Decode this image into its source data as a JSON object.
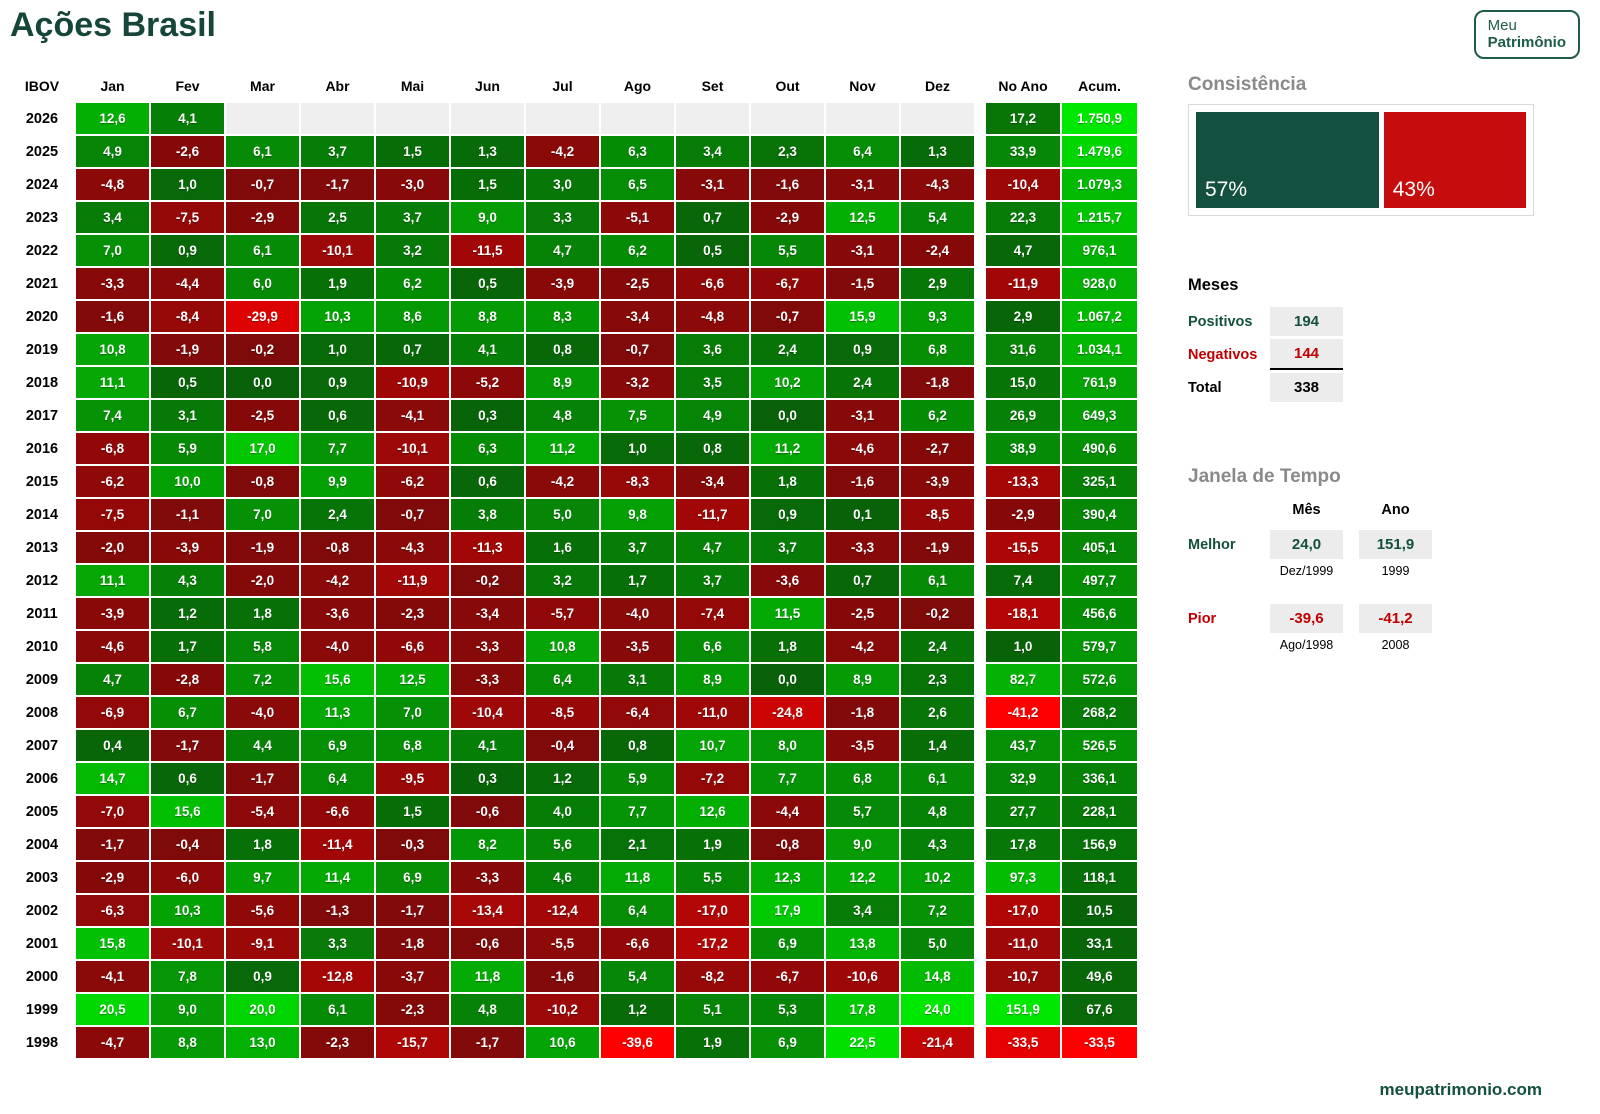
{
  "header": {
    "title": "Ações Brasil",
    "logo_line1": "Meu",
    "logo_line2": "Patrimônio"
  },
  "footer": {
    "site": "meupatrimonio.com"
  },
  "colors": {
    "brand_green": "#16453a",
    "consist_green": "#14503f",
    "consist_red": "#c50d0d",
    "heading_gray": "#8a8a8a",
    "empty_cell": "#efefef"
  },
  "consistencia": {
    "heading": "Consistência",
    "positive_pct": "57%",
    "negative_pct": "43%",
    "positive_share": 57,
    "negative_share": 43
  },
  "meses": {
    "heading": "Meses",
    "rows": [
      {
        "label": "Positivos",
        "value": "194",
        "tone": "green"
      },
      {
        "label": "Negativos",
        "value": "144",
        "tone": "red"
      },
      {
        "label": "Total",
        "value": "338",
        "tone": "black"
      }
    ]
  },
  "janela": {
    "heading": "Janela de Tempo",
    "col_headers": [
      "Mês",
      "Ano"
    ],
    "rows": [
      {
        "label": "Melhor",
        "tone": "green",
        "mes": "24,0",
        "mes_sub": "Dez/1999",
        "ano": "151,9",
        "ano_sub": "1999"
      },
      {
        "label": "Pior",
        "tone": "red",
        "mes": "-39,6",
        "mes_sub": "Ago/1998",
        "ano": "-41,2",
        "ano_sub": "2008"
      }
    ]
  },
  "chart_data": {
    "type": "heatmap",
    "title": "Ações Brasil",
    "index_label": "IBOV",
    "columns": [
      "Jan",
      "Fev",
      "Mar",
      "Abr",
      "Mai",
      "Jun",
      "Jul",
      "Ago",
      "Set",
      "Out",
      "Nov",
      "Dez"
    ],
    "summary_columns": [
      "No Ano",
      "Acum."
    ],
    "rows": [
      {
        "year": "2026",
        "values": [
          "12,6",
          "4,1",
          null,
          null,
          null,
          null,
          null,
          null,
          null,
          null,
          null,
          null
        ],
        "no_ano": "17,2",
        "acum": "1.750,9"
      },
      {
        "year": "2025",
        "values": [
          "4,9",
          "-2,6",
          "6,1",
          "3,7",
          "1,5",
          "1,3",
          "-4,2",
          "6,3",
          "3,4",
          "2,3",
          "6,4",
          "1,3"
        ],
        "no_ano": "33,9",
        "acum": "1.479,6"
      },
      {
        "year": "2024",
        "values": [
          "-4,8",
          "1,0",
          "-0,7",
          "-1,7",
          "-3,0",
          "1,5",
          "3,0",
          "6,5",
          "-3,1",
          "-1,6",
          "-3,1",
          "-4,3"
        ],
        "no_ano": "-10,4",
        "acum": "1.079,3"
      },
      {
        "year": "2023",
        "values": [
          "3,4",
          "-7,5",
          "-2,9",
          "2,5",
          "3,7",
          "9,0",
          "3,3",
          "-5,1",
          "0,7",
          "-2,9",
          "12,5",
          "5,4"
        ],
        "no_ano": "22,3",
        "acum": "1.215,7"
      },
      {
        "year": "2022",
        "values": [
          "7,0",
          "0,9",
          "6,1",
          "-10,1",
          "3,2",
          "-11,5",
          "4,7",
          "6,2",
          "0,5",
          "5,5",
          "-3,1",
          "-2,4"
        ],
        "no_ano": "4,7",
        "acum": "976,1"
      },
      {
        "year": "2021",
        "values": [
          "-3,3",
          "-4,4",
          "6,0",
          "1,9",
          "6,2",
          "0,5",
          "-3,9",
          "-2,5",
          "-6,6",
          "-6,7",
          "-1,5",
          "2,9"
        ],
        "no_ano": "-11,9",
        "acum": "928,0"
      },
      {
        "year": "2020",
        "values": [
          "-1,6",
          "-8,4",
          "-29,9",
          "10,3",
          "8,6",
          "8,8",
          "8,3",
          "-3,4",
          "-4,8",
          "-0,7",
          "15,9",
          "9,3"
        ],
        "no_ano": "2,9",
        "acum": "1.067,2"
      },
      {
        "year": "2019",
        "values": [
          "10,8",
          "-1,9",
          "-0,2",
          "1,0",
          "0,7",
          "4,1",
          "0,8",
          "-0,7",
          "3,6",
          "2,4",
          "0,9",
          "6,8"
        ],
        "no_ano": "31,6",
        "acum": "1.034,1"
      },
      {
        "year": "2018",
        "values": [
          "11,1",
          "0,5",
          "0,0",
          "0,9",
          "-10,9",
          "-5,2",
          "8,9",
          "-3,2",
          "3,5",
          "10,2",
          "2,4",
          "-1,8"
        ],
        "no_ano": "15,0",
        "acum": "761,9"
      },
      {
        "year": "2017",
        "values": [
          "7,4",
          "3,1",
          "-2,5",
          "0,6",
          "-4,1",
          "0,3",
          "4,8",
          "7,5",
          "4,9",
          "0,0",
          "-3,1",
          "6,2"
        ],
        "no_ano": "26,9",
        "acum": "649,3"
      },
      {
        "year": "2016",
        "values": [
          "-6,8",
          "5,9",
          "17,0",
          "7,7",
          "-10,1",
          "6,3",
          "11,2",
          "1,0",
          "0,8",
          "11,2",
          "-4,6",
          "-2,7"
        ],
        "no_ano": "38,9",
        "acum": "490,6"
      },
      {
        "year": "2015",
        "values": [
          "-6,2",
          "10,0",
          "-0,8",
          "9,9",
          "-6,2",
          "0,6",
          "-4,2",
          "-8,3",
          "-3,4",
          "1,8",
          "-1,6",
          "-3,9"
        ],
        "no_ano": "-13,3",
        "acum": "325,1"
      },
      {
        "year": "2014",
        "values": [
          "-7,5",
          "-1,1",
          "7,0",
          "2,4",
          "-0,7",
          "3,8",
          "5,0",
          "9,8",
          "-11,7",
          "0,9",
          "0,1",
          "-8,5"
        ],
        "no_ano": "-2,9",
        "acum": "390,4"
      },
      {
        "year": "2013",
        "values": [
          "-2,0",
          "-3,9",
          "-1,9",
          "-0,8",
          "-4,3",
          "-11,3",
          "1,6",
          "3,7",
          "4,7",
          "3,7",
          "-3,3",
          "-1,9"
        ],
        "no_ano": "-15,5",
        "acum": "405,1"
      },
      {
        "year": "2012",
        "values": [
          "11,1",
          "4,3",
          "-2,0",
          "-4,2",
          "-11,9",
          "-0,2",
          "3,2",
          "1,7",
          "3,7",
          "-3,6",
          "0,7",
          "6,1"
        ],
        "no_ano": "7,4",
        "acum": "497,7"
      },
      {
        "year": "2011",
        "values": [
          "-3,9",
          "1,2",
          "1,8",
          "-3,6",
          "-2,3",
          "-3,4",
          "-5,7",
          "-4,0",
          "-7,4",
          "11,5",
          "-2,5",
          "-0,2"
        ],
        "no_ano": "-18,1",
        "acum": "456,6"
      },
      {
        "year": "2010",
        "values": [
          "-4,6",
          "1,7",
          "5,8",
          "-4,0",
          "-6,6",
          "-3,3",
          "10,8",
          "-3,5",
          "6,6",
          "1,8",
          "-4,2",
          "2,4"
        ],
        "no_ano": "1,0",
        "acum": "579,7"
      },
      {
        "year": "2009",
        "values": [
          "4,7",
          "-2,8",
          "7,2",
          "15,6",
          "12,5",
          "-3,3",
          "6,4",
          "3,1",
          "8,9",
          "0,0",
          "8,9",
          "2,3"
        ],
        "no_ano": "82,7",
        "acum": "572,6"
      },
      {
        "year": "2008",
        "values": [
          "-6,9",
          "6,7",
          "-4,0",
          "11,3",
          "7,0",
          "-10,4",
          "-8,5",
          "-6,4",
          "-11,0",
          "-24,8",
          "-1,8",
          "2,6"
        ],
        "no_ano": "-41,2",
        "acum": "268,2"
      },
      {
        "year": "2007",
        "values": [
          "0,4",
          "-1,7",
          "4,4",
          "6,9",
          "6,8",
          "4,1",
          "-0,4",
          "0,8",
          "10,7",
          "8,0",
          "-3,5",
          "1,4"
        ],
        "no_ano": "43,7",
        "acum": "526,5"
      },
      {
        "year": "2006",
        "values": [
          "14,7",
          "0,6",
          "-1,7",
          "6,4",
          "-9,5",
          "0,3",
          "1,2",
          "5,9",
          "-7,2",
          "7,7",
          "6,8",
          "6,1"
        ],
        "no_ano": "32,9",
        "acum": "336,1"
      },
      {
        "year": "2005",
        "values": [
          "-7,0",
          "15,6",
          "-5,4",
          "-6,6",
          "1,5",
          "-0,6",
          "4,0",
          "7,7",
          "12,6",
          "-4,4",
          "5,7",
          "4,8"
        ],
        "no_ano": "27,7",
        "acum": "228,1"
      },
      {
        "year": "2004",
        "values": [
          "-1,7",
          "-0,4",
          "1,8",
          "-11,4",
          "-0,3",
          "8,2",
          "5,6",
          "2,1",
          "1,9",
          "-0,8",
          "9,0",
          "4,3"
        ],
        "no_ano": "17,8",
        "acum": "156,9"
      },
      {
        "year": "2003",
        "values": [
          "-2,9",
          "-6,0",
          "9,7",
          "11,4",
          "6,9",
          "-3,3",
          "4,6",
          "11,8",
          "5,5",
          "12,3",
          "12,2",
          "10,2"
        ],
        "no_ano": "97,3",
        "acum": "118,1"
      },
      {
        "year": "2002",
        "values": [
          "-6,3",
          "10,3",
          "-5,6",
          "-1,3",
          "-1,7",
          "-13,4",
          "-12,4",
          "6,4",
          "-17,0",
          "17,9",
          "3,4",
          "7,2"
        ],
        "no_ano": "-17,0",
        "acum": "10,5"
      },
      {
        "year": "2001",
        "values": [
          "15,8",
          "-10,1",
          "-9,1",
          "3,3",
          "-1,8",
          "-0,6",
          "-5,5",
          "-6,6",
          "-17,2",
          "6,9",
          "13,8",
          "5,0"
        ],
        "no_ano": "-11,0",
        "acum": "33,1"
      },
      {
        "year": "2000",
        "values": [
          "-4,1",
          "7,8",
          "0,9",
          "-12,8",
          "-3,7",
          "11,8",
          "-1,6",
          "5,4",
          "-8,2",
          "-6,7",
          "-10,6",
          "14,8"
        ],
        "no_ano": "-10,7",
        "acum": "49,6"
      },
      {
        "year": "1999",
        "values": [
          "20,5",
          "9,0",
          "20,0",
          "6,1",
          "-2,3",
          "4,8",
          "-10,2",
          "1,2",
          "5,1",
          "5,3",
          "17,8",
          "24,0"
        ],
        "no_ano": "151,9",
        "acum": "67,6"
      },
      {
        "year": "1998",
        "values": [
          "-4,7",
          "8,8",
          "13,0",
          "-2,3",
          "-15,7",
          "-1,7",
          "10,6",
          "-39,6",
          "1,9",
          "6,9",
          "22,5",
          "-21,4"
        ],
        "no_ano": "-33,5",
        "acum": "-33,5"
      }
    ]
  }
}
